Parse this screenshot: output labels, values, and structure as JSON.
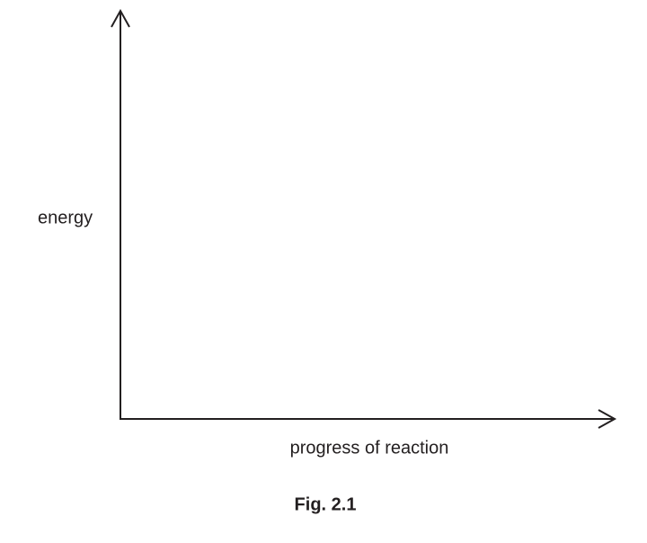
{
  "diagram": {
    "y_axis_label": "energy",
    "x_axis_label": "progress of reaction",
    "caption": "Fig. 2.1"
  }
}
